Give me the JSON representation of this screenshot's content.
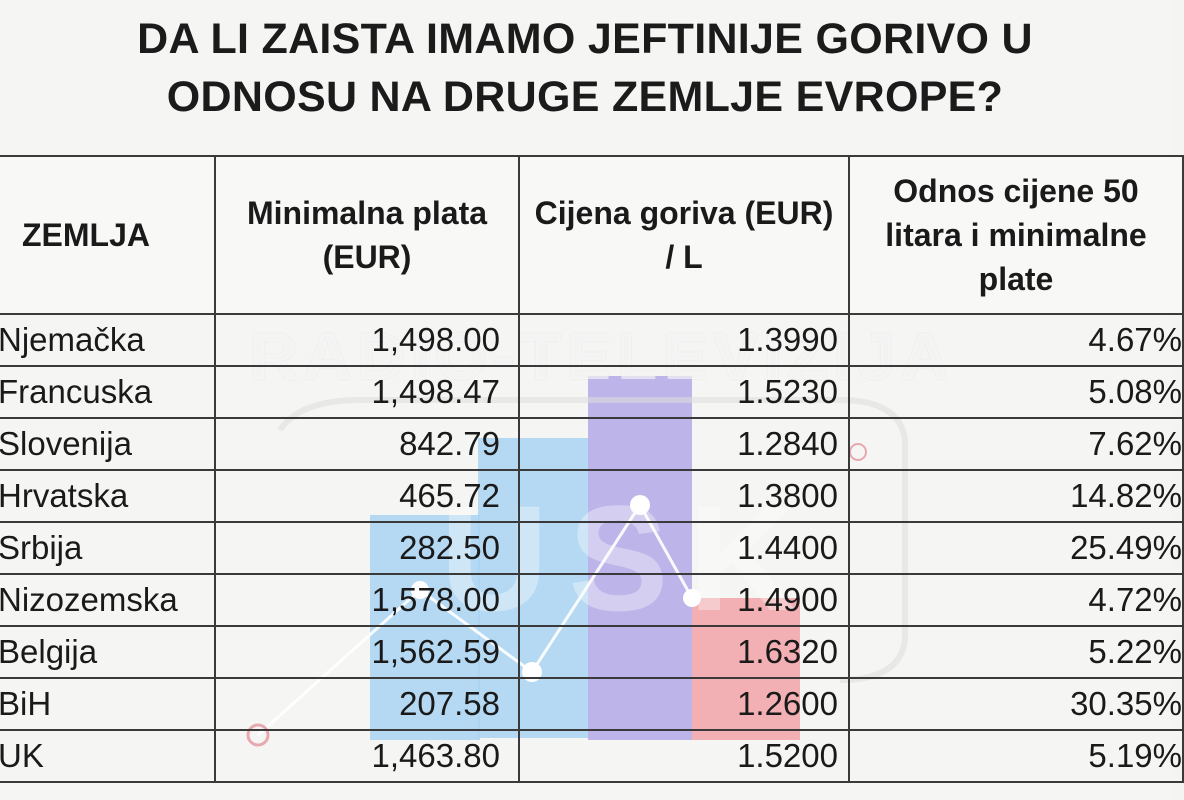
{
  "title": {
    "line1": "DA LI ZAISTA IMAMO JEFTINIJE GORIVO U",
    "line2": "ODNOSU NA DRUGE ZEMLJE EVROPE?"
  },
  "watermark": {
    "text": "RADIO-TELEVIZIJA",
    "logo_text": "USK",
    "colors": {
      "blue_bar": "#a9d4f2",
      "purple_bar": "#b7aee8",
      "red_bar": "#f2a9ad"
    }
  },
  "table": {
    "headers": {
      "country": "ZEMLJA",
      "wage": "Minimalna plata (EUR)",
      "fuel": "Cijena goriva (EUR) / L",
      "ratio": "Odnos cijene 50 litara i minimalne plate"
    },
    "rows": [
      {
        "country": "Njemačka",
        "wage": "1,498.00",
        "fuel": "1.3990",
        "ratio": "4.67%"
      },
      {
        "country": "Francuska",
        "wage": "1,498.47",
        "fuel": "1.5230",
        "ratio": "5.08%"
      },
      {
        "country": "Slovenija",
        "wage": "842.79",
        "fuel": "1.2840",
        "ratio": "7.62%"
      },
      {
        "country": "Hrvatska",
        "wage": "465.72",
        "fuel": "1.3800",
        "ratio": "14.82%"
      },
      {
        "country": "Srbija",
        "wage": "282.50",
        "fuel": "1.4400",
        "ratio": "25.49%"
      },
      {
        "country": "Nizozemska",
        "wage": "1,578.00",
        "fuel": "1.4900",
        "ratio": "4.72%"
      },
      {
        "country": "Belgija",
        "wage": "1,562.59",
        "fuel": "1.6320",
        "ratio": "5.22%"
      },
      {
        "country": "BiH",
        "wage": "207.58",
        "fuel": "1.2600",
        "ratio": "30.35%"
      },
      {
        "country": "UK",
        "wage": "1,463.80",
        "fuel": "1.5200",
        "ratio": "5.19%"
      }
    ]
  }
}
